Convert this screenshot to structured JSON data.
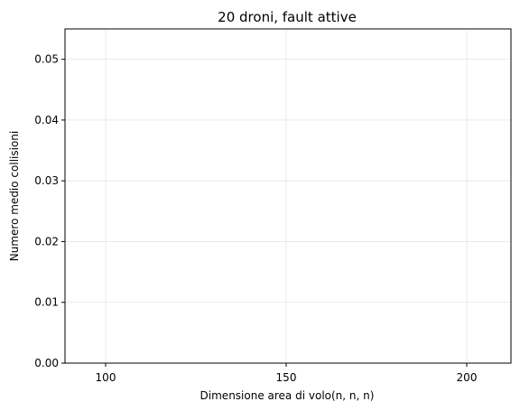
{
  "chart_data": {
    "type": "bar",
    "title": "20 droni, fault attive",
    "xlabel": "Dimensione area di volo(n, n, n)",
    "ylabel": "Numero medio collisioni",
    "categories": [
      "100",
      "150",
      "200"
    ],
    "values": [
      0,
      0,
      0
    ],
    "ylim": [
      0,
      0.055
    ],
    "yticks": [
      0.0,
      0.01,
      0.02,
      0.03,
      0.04,
      0.05
    ],
    "yticks_labels": [
      "0.00",
      "0.01",
      "0.02",
      "0.03",
      "0.04",
      "0.05"
    ],
    "grid": true,
    "bar_color": "#1f77b4",
    "grid_color": "#e6e6e6"
  }
}
